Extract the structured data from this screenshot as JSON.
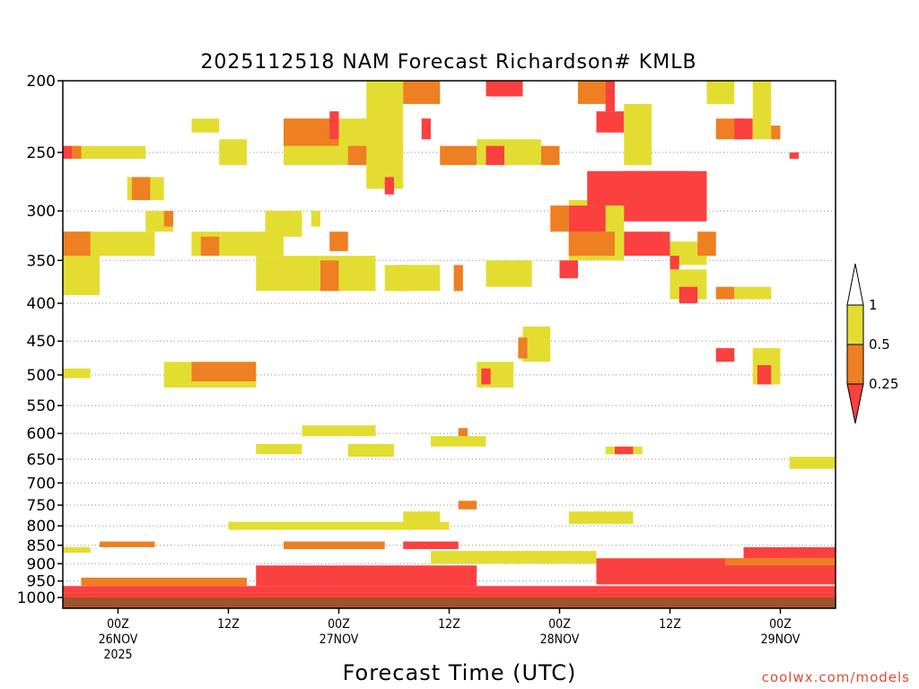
{
  "chart_data": {
    "type": "heatmap",
    "title": "2025112518 NAM Forecast Richardson# KMLB",
    "xlabel": "Forecast Time (UTC)",
    "ylabel": "",
    "y_scale": "pressure (log), inverted",
    "ylim": [
      1000,
      200
    ],
    "y_ticks": [
      200,
      250,
      300,
      350,
      400,
      450,
      500,
      550,
      600,
      650,
      700,
      750,
      800,
      850,
      900,
      950,
      1000
    ],
    "x_ticks": [
      {
        "line1": "00Z",
        "line2": "26NOV",
        "line3": "2025"
      },
      {
        "line1": "12Z",
        "line2": "",
        "line3": ""
      },
      {
        "line1": "00Z",
        "line2": "27NOV",
        "line3": ""
      },
      {
        "line1": "12Z",
        "line2": "",
        "line3": ""
      },
      {
        "line1": "00Z",
        "line2": "28NOV",
        "line3": ""
      },
      {
        "line1": "12Z",
        "line2": "",
        "line3": ""
      },
      {
        "line1": "00Z",
        "line2": "29NOV",
        "line3": ""
      }
    ],
    "x_tick_hours": [
      6,
      18,
      30,
      42,
      54,
      66,
      78
    ],
    "xlim_hours": [
      0,
      84
    ],
    "color_scale": {
      "thresholds": [
        0.25,
        0.5,
        1
      ],
      "labels": [
        "0.25",
        "0.5",
        "1"
      ],
      "colors": {
        "lt_0_25": "#fb4040",
        "0_25_to_0_5": "#ee7f22",
        "0_5_to_1": "#e3dd32",
        "gt_1": "#ffffff"
      }
    },
    "ground_color": "#a0522d",
    "grid": "dotted horizontal lines at y ticks",
    "regions": [
      {
        "level": "lt_0_25",
        "h0": 0.0,
        "h1": 84,
        "p0": 985,
        "p1": 1000
      },
      {
        "level": "lt_0_25",
        "h0": 0.0,
        "h1": 84,
        "p0": 965,
        "p1": 985
      },
      {
        "level": "0_25_to_0_5",
        "h0": 2,
        "h1": 20,
        "p0": 940,
        "p1": 965
      },
      {
        "level": "lt_0_25",
        "h0": 21,
        "h1": 45,
        "p0": 905,
        "p1": 965
      },
      {
        "level": "0_25_to_0_5",
        "h0": 24,
        "h1": 35,
        "p0": 840,
        "p1": 860
      },
      {
        "level": "lt_0_25",
        "h0": 37,
        "h1": 43,
        "p0": 840,
        "p1": 860
      },
      {
        "level": "0_5_to_1",
        "h0": 18,
        "h1": 42,
        "p0": 790,
        "p1": 810
      },
      {
        "level": "lt_0_25",
        "h0": 58,
        "h1": 84,
        "p0": 885,
        "p1": 960
      },
      {
        "level": "lt_0_25",
        "h0": 74,
        "h1": 84,
        "p0": 855,
        "p1": 885
      },
      {
        "level": "0_25_to_0_5",
        "h0": 72,
        "h1": 84,
        "p0": 885,
        "p1": 905
      },
      {
        "level": "0_5_to_1",
        "h0": 40,
        "h1": 58,
        "p0": 865,
        "p1": 900
      },
      {
        "level": "0_5_to_1",
        "h0": 0,
        "h1": 3,
        "p0": 855,
        "p1": 870
      },
      {
        "level": "0_25_to_0_5",
        "h0": 4,
        "h1": 10,
        "p0": 840,
        "p1": 855
      },
      {
        "level": "0_5_to_1",
        "h0": 55,
        "h1": 62,
        "p0": 765,
        "p1": 795
      },
      {
        "level": "0_5_to_1",
        "h0": 37,
        "h1": 41,
        "p0": 765,
        "p1": 795
      },
      {
        "level": "0_25_to_0_5",
        "h0": 43,
        "h1": 45,
        "p0": 740,
        "p1": 760
      },
      {
        "level": "0_5_to_1",
        "h0": 26,
        "h1": 34,
        "p0": 585,
        "p1": 605
      },
      {
        "level": "0_5_to_1",
        "h0": 21,
        "h1": 26,
        "p0": 620,
        "p1": 640
      },
      {
        "level": "0_5_to_1",
        "h0": 31,
        "h1": 36,
        "p0": 620,
        "p1": 645
      },
      {
        "level": "0_5_to_1",
        "h0": 40,
        "h1": 46,
        "p0": 605,
        "p1": 625
      },
      {
        "level": "0_25_to_0_5",
        "h0": 43,
        "h1": 44,
        "p0": 590,
        "p1": 605
      },
      {
        "level": "0_5_to_1",
        "h0": 11,
        "h1": 21,
        "p0": 480,
        "p1": 520
      },
      {
        "level": "0_25_to_0_5",
        "h0": 14,
        "h1": 21,
        "p0": 480,
        "p1": 510
      },
      {
        "level": "0_5_to_1",
        "h0": 0,
        "h1": 3,
        "p0": 490,
        "p1": 505
      },
      {
        "level": "0_5_to_1",
        "h0": 45,
        "h1": 49,
        "p0": 480,
        "p1": 520
      },
      {
        "level": "lt_0_25",
        "h0": 45.5,
        "h1": 46.5,
        "p0": 490,
        "p1": 515
      },
      {
        "level": "0_5_to_1",
        "h0": 50,
        "h1": 53,
        "p0": 430,
        "p1": 480
      },
      {
        "level": "0_25_to_0_5",
        "h0": 49.5,
        "h1": 50.5,
        "p0": 445,
        "p1": 475
      },
      {
        "level": "lt_0_25",
        "h0": 71,
        "h1": 73,
        "p0": 460,
        "p1": 480
      },
      {
        "level": "0_5_to_1",
        "h0": 75,
        "h1": 78,
        "p0": 460,
        "p1": 515
      },
      {
        "level": "lt_0_25",
        "h0": 75.5,
        "h1": 77,
        "p0": 485,
        "p1": 515
      },
      {
        "level": "0_25_to_0_5",
        "h0": 82,
        "h1": 84,
        "p0": 650,
        "p1": 665
      },
      {
        "level": "0_5_to_1",
        "h0": 79,
        "h1": 84,
        "p0": 645,
        "p1": 670
      },
      {
        "level": "0_5_to_1",
        "h0": 59,
        "h1": 63,
        "p0": 625,
        "p1": 640
      },
      {
        "level": "lt_0_25",
        "h0": 60,
        "h1": 62,
        "p0": 625,
        "p1": 640
      },
      {
        "level": "0_5_to_1",
        "h0": 0,
        "h1": 4,
        "p0": 320,
        "p1": 390
      },
      {
        "level": "0_25_to_0_5",
        "h0": 0,
        "h1": 3,
        "p0": 320,
        "p1": 345
      },
      {
        "level": "0_5_to_1",
        "h0": 4,
        "h1": 10,
        "p0": 320,
        "p1": 345
      },
      {
        "level": "0_5_to_1",
        "h0": 14,
        "h1": 24,
        "p0": 320,
        "p1": 345
      },
      {
        "level": "0_25_to_0_5",
        "h0": 15,
        "h1": 17,
        "p0": 325,
        "p1": 345
      },
      {
        "level": "0_5_to_1",
        "h0": 21,
        "h1": 34,
        "p0": 345,
        "p1": 385
      },
      {
        "level": "0_25_to_0_5",
        "h0": 28,
        "h1": 30,
        "p0": 350,
        "p1": 385
      },
      {
        "level": "lt_0_25",
        "h0": 36.5,
        "h1": 37.5,
        "p0": 355,
        "p1": 385
      },
      {
        "level": "0_5_to_1",
        "h0": 35,
        "h1": 41,
        "p0": 355,
        "p1": 385
      },
      {
        "level": "0_25_to_0_5",
        "h0": 42.5,
        "h1": 43.5,
        "p0": 355,
        "p1": 385
      },
      {
        "level": "0_5_to_1",
        "h0": 46,
        "h1": 51,
        "p0": 350,
        "p1": 380
      },
      {
        "level": "0_5_to_1",
        "h0": 9,
        "h1": 12,
        "p0": 300,
        "p1": 320
      },
      {
        "level": "0_25_to_0_5",
        "h0": 11,
        "h1": 12,
        "p0": 300,
        "p1": 315
      },
      {
        "level": "0_5_to_1",
        "h0": 22,
        "h1": 26,
        "p0": 300,
        "p1": 325
      },
      {
        "level": "0_5_to_1",
        "h0": 27,
        "h1": 28,
        "p0": 300,
        "p1": 315
      },
      {
        "level": "0_25_to_0_5",
        "h0": 29,
        "h1": 31,
        "p0": 320,
        "p1": 340
      },
      {
        "level": "0_5_to_1",
        "h0": 55,
        "h1": 61,
        "p0": 290,
        "p1": 350
      },
      {
        "level": "0_25_to_0_5",
        "h0": 55,
        "h1": 60,
        "p0": 320,
        "p1": 345
      },
      {
        "level": "lt_0_25",
        "h0": 54,
        "h1": 56,
        "p0": 350,
        "p1": 370
      },
      {
        "level": "lt_0_25",
        "h0": 55,
        "h1": 59,
        "p0": 295,
        "p1": 320
      },
      {
        "level": "0_25_to_0_5",
        "h0": 53,
        "h1": 55,
        "p0": 295,
        "p1": 320
      },
      {
        "level": "lt_0_25",
        "h0": 57,
        "h1": 68,
        "p0": 265,
        "p1": 295
      },
      {
        "level": "lt_0_25",
        "h0": 61,
        "h1": 70,
        "p0": 265,
        "p1": 310
      },
      {
        "level": "lt_0_25",
        "h0": 61,
        "h1": 66,
        "p0": 320,
        "p1": 345
      },
      {
        "level": "0_5_to_1",
        "h0": 66,
        "h1": 70,
        "p0": 330,
        "p1": 355
      },
      {
        "level": "0_25_to_0_5",
        "h0": 69,
        "h1": 71,
        "p0": 320,
        "p1": 345
      },
      {
        "level": "lt_0_25",
        "h0": 66,
        "h1": 67,
        "p0": 345,
        "p1": 360
      },
      {
        "level": "0_5_to_1",
        "h0": 66,
        "h1": 70,
        "p0": 360,
        "p1": 395
      },
      {
        "level": "lt_0_25",
        "h0": 67,
        "h1": 69,
        "p0": 380,
        "p1": 400
      },
      {
        "level": "0_25_to_0_5",
        "h0": 71,
        "h1": 73,
        "p0": 380,
        "p1": 395
      },
      {
        "level": "0_5_to_1",
        "h0": 73,
        "h1": 77,
        "p0": 380,
        "p1": 395
      },
      {
        "level": "0_5_to_1",
        "h0": 0,
        "h1": 9,
        "p0": 245,
        "p1": 255
      },
      {
        "level": "lt_0_25",
        "h0": 0,
        "h1": 1,
        "p0": 245,
        "p1": 255
      },
      {
        "level": "0_25_to_0_5",
        "h0": 1,
        "h1": 2,
        "p0": 245,
        "p1": 255
      },
      {
        "level": "0_5_to_1",
        "h0": 7,
        "h1": 11,
        "p0": 270,
        "p1": 290
      },
      {
        "level": "0_25_to_0_5",
        "h0": 7.5,
        "h1": 9.5,
        "p0": 270,
        "p1": 290
      },
      {
        "level": "0_5_to_1",
        "h0": 14,
        "h1": 17,
        "p0": 225,
        "p1": 235
      },
      {
        "level": "0_5_to_1",
        "h0": 17,
        "h1": 20,
        "p0": 240,
        "p1": 260
      },
      {
        "level": "0_5_to_1",
        "h0": 24,
        "h1": 35,
        "p0": 225,
        "p1": 260
      },
      {
        "level": "0_25_to_0_5",
        "h0": 24,
        "h1": 30,
        "p0": 225,
        "p1": 245
      },
      {
        "level": "lt_0_25",
        "h0": 29,
        "h1": 30,
        "p0": 220,
        "p1": 240
      },
      {
        "level": "0_25_to_0_5",
        "h0": 31,
        "h1": 34,
        "p0": 245,
        "p1": 260
      },
      {
        "level": "0_5_to_1",
        "h0": 33,
        "h1": 37,
        "p0": 200,
        "p1": 280
      },
      {
        "level": "lt_0_25",
        "h0": 35,
        "h1": 36,
        "p0": 270,
        "p1": 285
      },
      {
        "level": "0_25_to_0_5",
        "h0": 37,
        "h1": 41,
        "p0": 200,
        "p1": 215
      },
      {
        "level": "lt_0_25",
        "h0": 39,
        "h1": 40,
        "p0": 225,
        "p1": 240
      },
      {
        "level": "0_25_to_0_5",
        "h0": 41,
        "h1": 45,
        "p0": 245,
        "p1": 260
      },
      {
        "level": "0_5_to_1",
        "h0": 45,
        "h1": 52,
        "p0": 240,
        "p1": 260
      },
      {
        "level": "lt_0_25",
        "h0": 46,
        "h1": 48,
        "p0": 245,
        "p1": 260
      },
      {
        "level": "0_25_to_0_5",
        "h0": 52,
        "h1": 54,
        "p0": 245,
        "p1": 260
      },
      {
        "level": "lt_0_25",
        "h0": 46,
        "h1": 50,
        "p0": 200,
        "p1": 210
      },
      {
        "level": "0_25_to_0_5",
        "h0": 56,
        "h1": 60,
        "p0": 200,
        "p1": 215
      },
      {
        "level": "lt_0_25",
        "h0": 59,
        "h1": 60,
        "p0": 200,
        "p1": 220
      },
      {
        "level": "lt_0_25",
        "h0": 58,
        "h1": 61,
        "p0": 220,
        "p1": 235
      },
      {
        "level": "0_5_to_1",
        "h0": 61,
        "h1": 64,
        "p0": 215,
        "p1": 260
      },
      {
        "level": "0_5_to_1",
        "h0": 70,
        "h1": 73,
        "p0": 200,
        "p1": 215
      },
      {
        "level": "0_25_to_0_5",
        "h0": 71,
        "h1": 74,
        "p0": 225,
        "p1": 240
      },
      {
        "level": "lt_0_25",
        "h0": 73,
        "h1": 75,
        "p0": 225,
        "p1": 240
      },
      {
        "level": "0_5_to_1",
        "h0": 75,
        "h1": 77,
        "p0": 200,
        "p1": 240
      },
      {
        "level": "0_25_to_0_5",
        "h0": 77,
        "h1": 78,
        "p0": 230,
        "p1": 240
      },
      {
        "level": "lt_0_25",
        "h0": 79,
        "h1": 80,
        "p0": 250,
        "p1": 255
      }
    ]
  },
  "credit": "coolwx.com/models"
}
